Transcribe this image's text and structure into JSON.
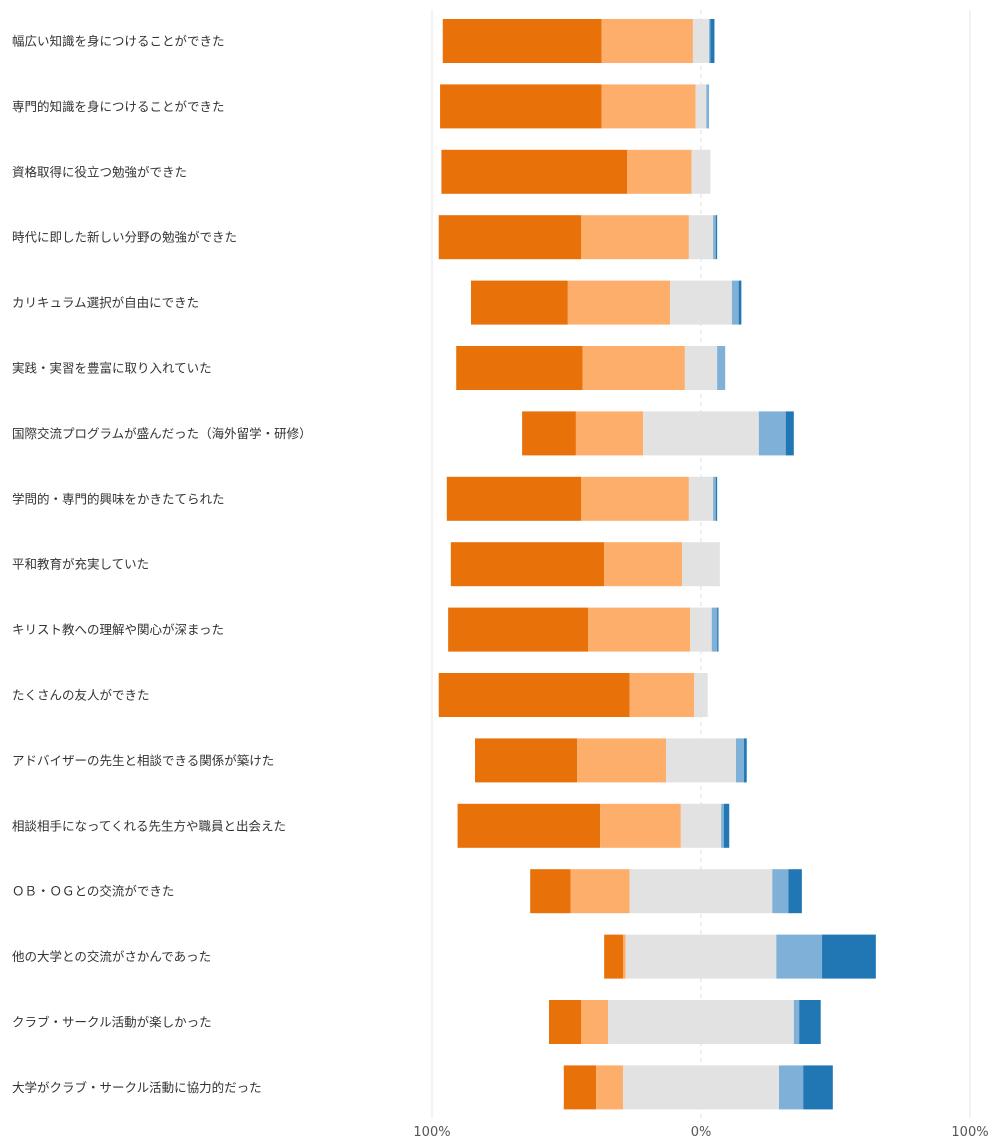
{
  "chart_data": {
    "type": "bar",
    "subtype": "diverging-stacked-horizontal",
    "xlabel": "",
    "ylabel": "",
    "xlim": [
      -100,
      100
    ],
    "x_tick_labels": [
      "100%",
      "0%",
      "100%"
    ],
    "grid": true,
    "legend": "none",
    "colors": [
      "#E8710A",
      "#FDAE6B",
      "#E2E2E2",
      "#7FB0D7",
      "#2077B4"
    ],
    "categories": [
      "幅広い知識を身につけることができた",
      "専門的知識を身につけることができた",
      "資格取得に役立つ勉強ができた",
      "時代に即した新しい分野の勉強ができた",
      "カリキュラム選択が自由にできた",
      "実践・実習を豊富に取り入れていた",
      "国際交流プログラムが盛んだった（海外留学・研修）",
      "学問的・専門的興味をかきたてられた",
      "平和教育が充実していた",
      "キリスト教への理解や関心が深まった",
      "たくさんの友人ができた",
      "アドバイザーの先生と相談できる関係が築けた",
      "相談相手になってくれる先生方や職員と出会えた",
      "ＯＢ・ＯＧとの交流ができた",
      "他の大学との交流がさかんであった",
      "クラブ・サークル活動が楽しかった",
      "大学がクラブ・サークル活動に協力的だった"
    ],
    "series": [
      {
        "values": [
          59,
          60,
          69,
          53,
          36,
          47,
          20,
          50,
          57,
          52,
          71,
          38,
          53,
          15,
          7,
          12,
          12
        ]
      },
      {
        "values": [
          34,
          35,
          24,
          40,
          38,
          38,
          25,
          40,
          29,
          38,
          24,
          33,
          30,
          22,
          1,
          10,
          10
        ]
      },
      {
        "values": [
          6,
          4,
          7,
          9,
          23,
          12,
          43,
          9,
          14,
          8,
          5,
          26,
          15,
          53,
          56,
          69,
          58
        ]
      },
      {
        "values": [
          0.5,
          1,
          0,
          1,
          2.5,
          3,
          10,
          1,
          0,
          2,
          0,
          3,
          1,
          6,
          17,
          2,
          9
        ]
      },
      {
        "values": [
          1.5,
          0,
          0,
          0.5,
          1,
          0,
          3,
          0.5,
          0,
          0.5,
          0,
          1,
          2,
          5,
          20,
          8,
          11
        ]
      }
    ]
  }
}
